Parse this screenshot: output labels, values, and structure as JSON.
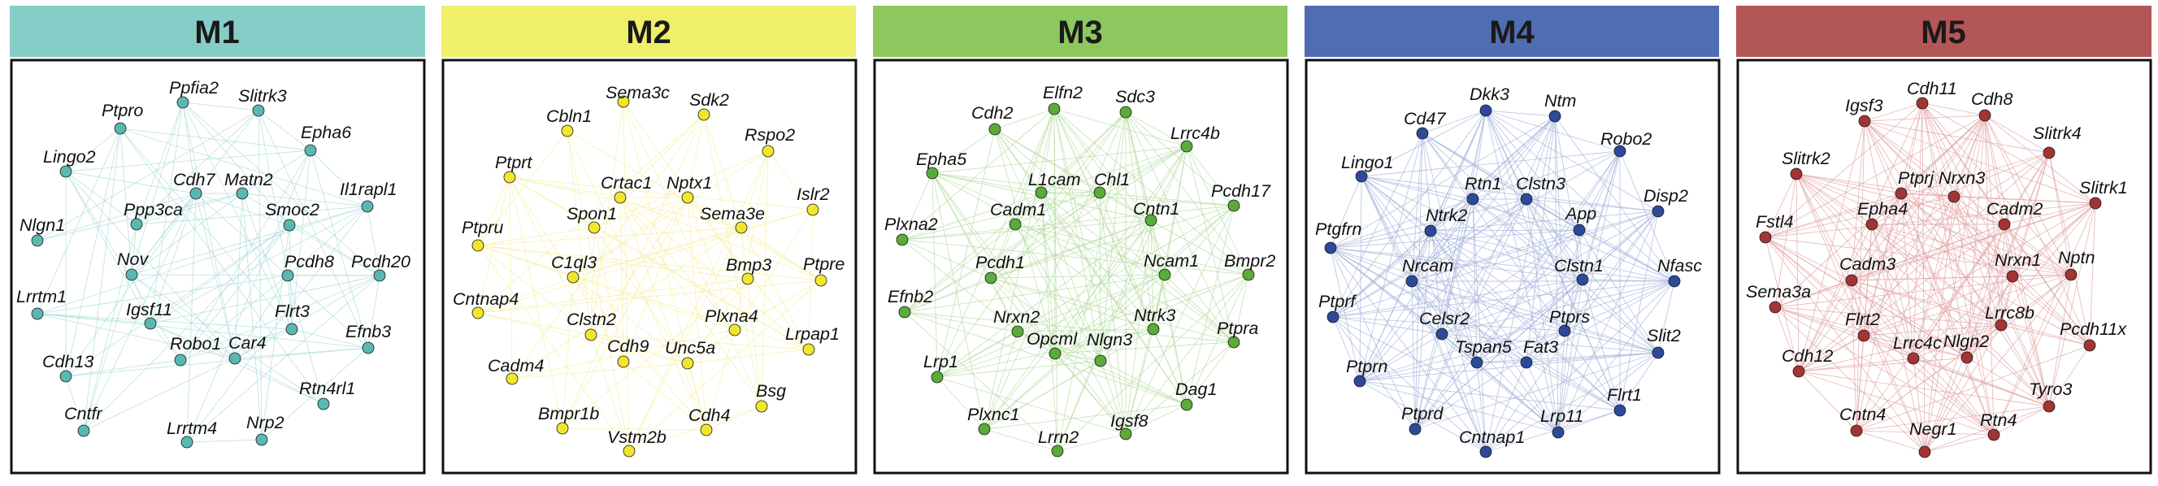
{
  "modules": [
    {
      "title": "M1",
      "header_color": "#86cdc8",
      "node_color": "#5ab8b0",
      "edge_color": "#a9dcd8",
      "genes": [
        "Ptpro",
        "Ppfia2",
        "Slitrk3",
        "Epha6",
        "Lingo2",
        "Cdh7",
        "Matn2",
        "Il1rapl1",
        "Nlgn1",
        "Ppp3ca",
        "Smoc2",
        "Nov",
        "Pcdh8",
        "Pcdh20",
        "Lrrtm1",
        "Igsf11",
        "Flrt3",
        "Efnb3",
        "Cdh13",
        "Robo1",
        "Car4",
        "Rtn4rl1",
        "Cntfr",
        "Lrrtm4",
        "Nrp2"
      ]
    },
    {
      "title": "M2",
      "header_color": "#eef06a",
      "node_color": "#f0e62e",
      "edge_color": "#f4f0a0",
      "genes": [
        "Sema3c",
        "Sdk2",
        "Cbln1",
        "Rspo2",
        "Ptprt",
        "Crtac1",
        "Nptx1",
        "Islr2",
        "Spon1",
        "Sema3e",
        "Ptpru",
        "C1ql3",
        "Bmp3",
        "Ptpre",
        "Cntnap4",
        "Clstn2",
        "Plxna4",
        "Lrpap1",
        "Cdh9",
        "Unc5a",
        "Cadm4",
        "Bsg",
        "Bmpr1b",
        "Vstm2b",
        "Cdh4"
      ]
    },
    {
      "title": "M3",
      "header_color": "#8cc85e",
      "node_color": "#5aab3a",
      "edge_color": "#b3dca0",
      "genes": [
        "Elfn2",
        "Sdc3",
        "Cdh2",
        "Lrrc4b",
        "Epha5",
        "L1cam",
        "Chl1",
        "Pcdh17",
        "Cadm1",
        "Cntn1",
        "Plxna2",
        "Pcdh1",
        "Ncam1",
        "Bmpr2",
        "Efnb2",
        "Nrxn2",
        "Ntrk3",
        "Ptpra",
        "Opcml",
        "Nlgn3",
        "Lrp1",
        "Dag1",
        "Plxnc1",
        "Igsf8",
        "Lrrn2"
      ]
    },
    {
      "title": "M4",
      "header_color": "#4f6db2",
      "node_color": "#2d4a9a",
      "edge_color": "#a3b2da",
      "genes": [
        "Dkk3",
        "Ntm",
        "Cd47",
        "Robo2",
        "Lingo1",
        "Rtn1",
        "Clstn3",
        "Disp2",
        "Ntrk2",
        "App",
        "Ptgfrn",
        "Clstn1",
        "Nfasc",
        "Nrcam",
        "Ptprf",
        "Celsr2",
        "Ptprs",
        "Slit2",
        "Tspan5",
        "Fat3",
        "Ptprn",
        "Flrt1",
        "Ptprd",
        "Cntnap1",
        "Lrp11"
      ]
    },
    {
      "title": "M5",
      "header_color": "#b35656",
      "node_color": "#a33434",
      "edge_color": "#e0a3a3",
      "genes": [
        "Cdh11",
        "Igsf3",
        "Cdh8",
        "Slitrk4",
        "Slitrk2",
        "Ptprj",
        "Nrxn3",
        "Slitrk1",
        "Epha4",
        "Cadm2",
        "Fstl4",
        "Nrxn1",
        "Nptn",
        "Cadm3",
        "Sema3a",
        "Flrt2",
        "Lrrc8b",
        "Pcdh11x",
        "Lrrc4c",
        "Nlgn2",
        "Cdh12",
        "Tyro3",
        "Cntn4",
        "Negr1",
        "Rtn4"
      ]
    }
  ]
}
